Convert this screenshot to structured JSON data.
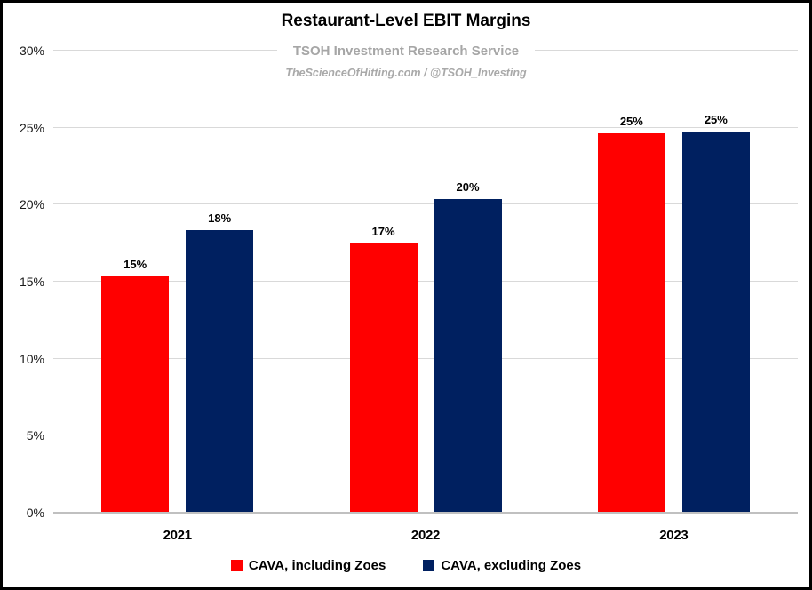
{
  "header": {
    "title": "Restaurant-Level EBIT Margins",
    "subtitle": "TSOH Investment Research Service",
    "watermark": "TheScienceOfHitting.com / @TSOH_Investing"
  },
  "chart_data": {
    "type": "bar",
    "title": "Restaurant-Level EBIT Margins",
    "categories": [
      "2021",
      "2022",
      "2023"
    ],
    "series": [
      {
        "name": "CAVA, including Zoes",
        "color": "#ff0000",
        "values": [
          15.3,
          17.4,
          24.6
        ],
        "labels": [
          "15%",
          "17%",
          "25%"
        ]
      },
      {
        "name": "CAVA, excluding Zoes",
        "color": "#002060",
        "values": [
          18.3,
          20.3,
          24.7
        ],
        "labels": [
          "18%",
          "20%",
          "25%"
        ]
      }
    ],
    "y_axis": {
      "min": 0,
      "max": 30,
      "step": 5,
      "tick_labels": [
        "0%",
        "5%",
        "10%",
        "15%",
        "20%",
        "25%",
        "30%"
      ]
    },
    "xlabel": "",
    "ylabel": "",
    "grid": true,
    "legend_position": "bottom",
    "gridline_color": "#d9d9d9",
    "axis_line_color": "#c0c0c0"
  }
}
